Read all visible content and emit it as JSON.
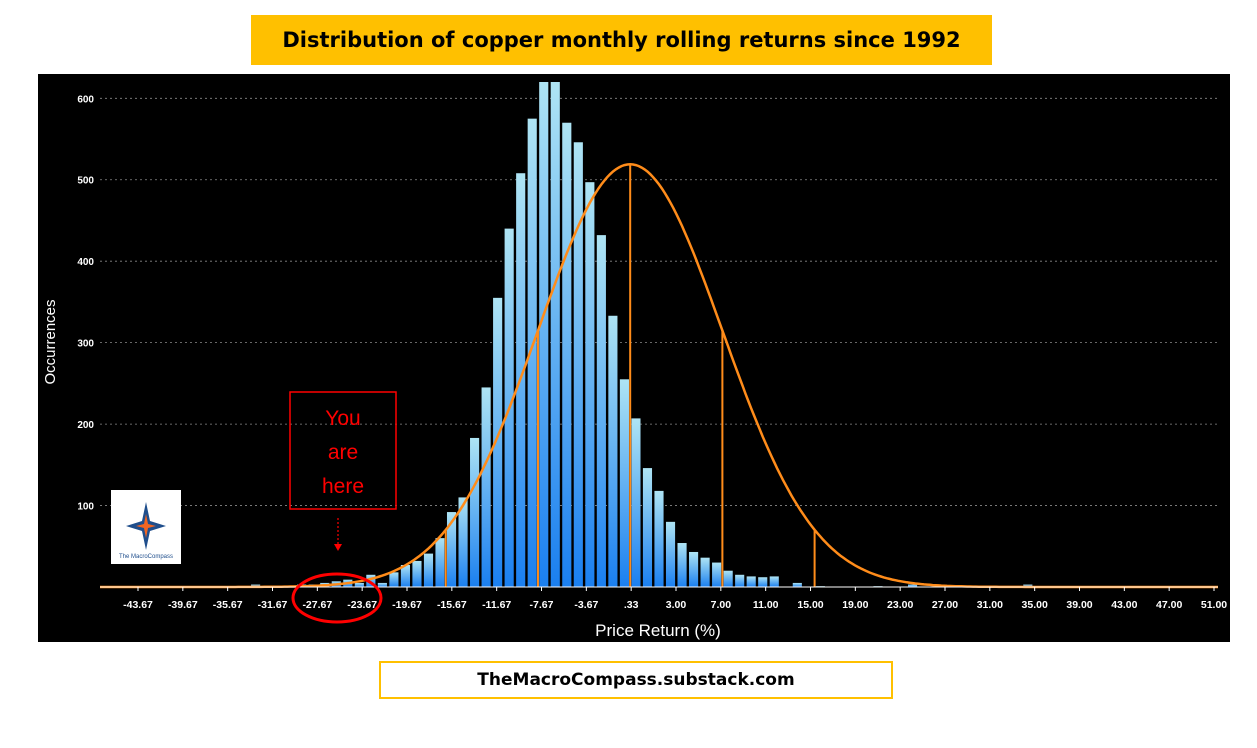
{
  "header": {
    "title": "Distribution of copper monthly rolling returns since 1992"
  },
  "footer": {
    "source": "TheMacroCompass.substack.com"
  },
  "logo": {
    "label": "The MacroCompass"
  },
  "annotation": {
    "lines": [
      "You",
      "are",
      "here"
    ]
  },
  "colors": {
    "bar_top": "#aee4f4",
    "bar_bottom": "#1a7ff0",
    "curve": "#ff8c1a",
    "annotation": "#ff0000",
    "banner": "#ffc000",
    "background": "#000000"
  },
  "chart_data": {
    "type": "bar",
    "xlabel": "Price Return (%)",
    "ylabel": "Occurrences",
    "ylim": [
      0,
      620
    ],
    "yticks": [
      100,
      200,
      300,
      400,
      500,
      600
    ],
    "grid": "horizontal dashed",
    "x_tick_labels": [
      "-43.67",
      "-39.67",
      "-35.67",
      "-31.67",
      "-27.67",
      "-23.67",
      "-19.67",
      "-15.67",
      "-11.67",
      "-7.67",
      "-3.67",
      ".33",
      "3.00",
      "7.00",
      "11.00",
      "15.00",
      "19.00",
      "23.00",
      "27.00",
      "31.00",
      "35.00",
      "39.00",
      "43.00",
      "47.00",
      "51.00"
    ],
    "bin_start": -45.67,
    "bin_width": 1,
    "values": [
      0,
      0,
      0,
      0,
      0,
      0,
      0,
      0,
      0,
      0,
      0,
      0,
      0,
      3,
      0,
      0,
      0,
      3,
      3,
      5,
      7,
      9,
      5,
      15,
      5,
      18,
      27,
      32,
      41,
      60,
      92,
      110,
      183,
      245,
      355,
      440,
      508,
      575,
      620,
      620,
      570,
      546,
      497,
      432,
      333,
      255,
      207,
      146,
      118,
      80,
      54,
      43,
      36,
      30,
      20,
      15,
      13,
      12,
      13,
      0,
      5,
      0,
      1,
      0,
      0,
      0,
      0,
      1,
      0,
      0,
      3,
      0,
      0,
      0,
      0,
      0,
      0,
      0,
      0,
      0,
      3,
      0,
      0,
      0,
      0,
      0,
      0,
      0,
      0,
      0,
      0,
      0,
      0,
      0,
      0,
      0,
      0
    ],
    "fit_curve": {
      "type": "normal",
      "mean": 0.33,
      "sd": 8.0,
      "peak": 519
    }
  }
}
